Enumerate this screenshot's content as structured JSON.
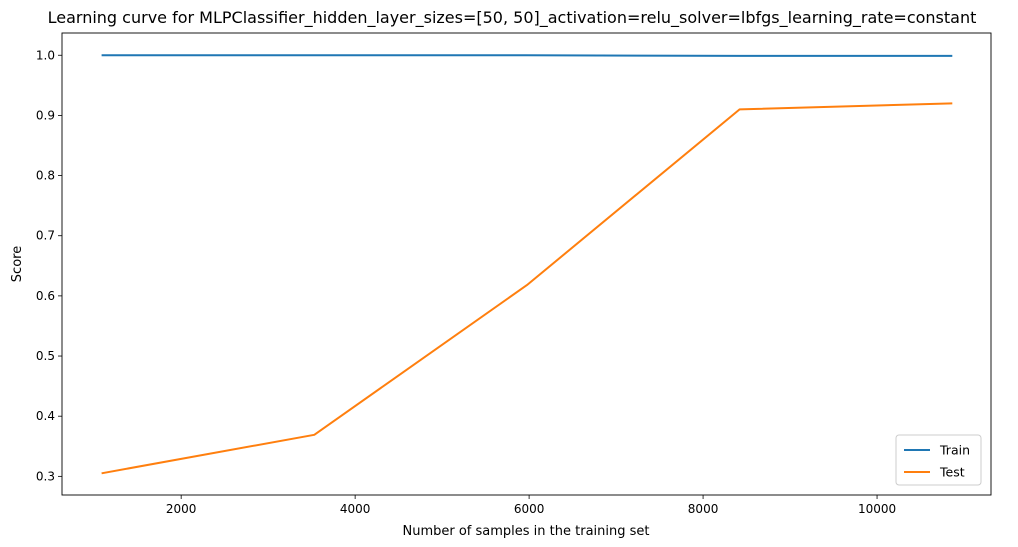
{
  "chart_data": {
    "type": "line",
    "title": "Learning curve for MLPClassifier_hidden_layer_sizes=[50, 50]_activation=relu_solver=lbfgs_learning_rate=constant",
    "xlabel": "Number of samples in the training set",
    "ylabel": "Score",
    "xlim": [
      630,
      11310
    ],
    "ylim": [
      0.269,
      1.037
    ],
    "xticks": [
      2000,
      4000,
      6000,
      8000,
      10000
    ],
    "yticks": [
      0.3,
      0.4,
      0.5,
      0.6,
      0.7,
      0.8,
      0.9,
      1.0
    ],
    "xtick_labels": [
      "2000",
      "4000",
      "6000",
      "8000",
      "10000"
    ],
    "ytick_labels": [
      "0.3",
      "0.4",
      "0.5",
      "0.6",
      "0.7",
      "0.8",
      "0.9",
      "1.0"
    ],
    "x": [
      1085,
      3530,
      5975,
      8420,
      10865
    ],
    "series": [
      {
        "name": "Train",
        "color": "#1f77b4",
        "values": [
          1.0,
          1.0,
          1.0,
          0.999,
          0.999
        ]
      },
      {
        "name": "Test",
        "color": "#ff7f0e",
        "values": [
          0.305,
          0.369,
          0.618,
          0.91,
          0.92
        ]
      }
    ],
    "legend_position": "lower-right",
    "grid": false
  }
}
